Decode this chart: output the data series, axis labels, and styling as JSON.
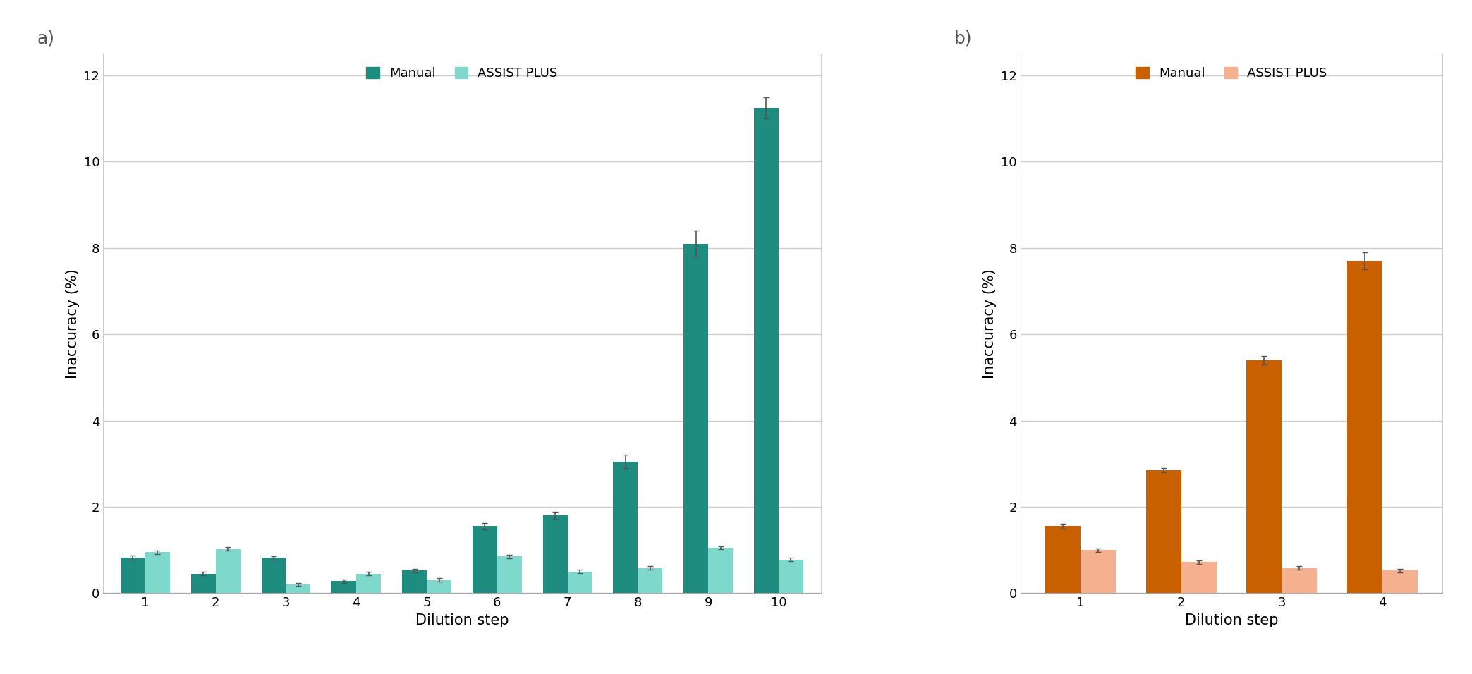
{
  "panel_a": {
    "title": "a)",
    "x_labels": [
      "1",
      "2",
      "3",
      "4",
      "5",
      "6",
      "7",
      "8",
      "9",
      "10"
    ],
    "manual_values": [
      0.82,
      0.45,
      0.82,
      0.28,
      0.52,
      1.55,
      1.8,
      3.05,
      8.1,
      11.25
    ],
    "manual_errors": [
      0.05,
      0.04,
      0.04,
      0.04,
      0.04,
      0.07,
      0.08,
      0.15,
      0.3,
      0.25
    ],
    "assist_values": [
      0.95,
      1.02,
      0.2,
      0.45,
      0.3,
      0.85,
      0.5,
      0.58,
      1.05,
      0.78
    ],
    "assist_errors": [
      0.04,
      0.04,
      0.04,
      0.04,
      0.04,
      0.04,
      0.04,
      0.04,
      0.04,
      0.04
    ],
    "manual_color": "#1e8c7e",
    "assist_color": "#7fd8cc",
    "ylabel": "Inaccuracy (%)",
    "xlabel": "Dilution step",
    "ylim": [
      0,
      12.5
    ],
    "yticks": [
      0,
      2,
      4,
      6,
      8,
      10,
      12
    ],
    "legend_manual": "Manual",
    "legend_assist": "ASSIST PLUS"
  },
  "panel_b": {
    "title": "b)",
    "x_labels": [
      "1",
      "2",
      "3",
      "4"
    ],
    "manual_values": [
      1.55,
      2.85,
      5.4,
      7.7
    ],
    "manual_errors": [
      0.05,
      0.05,
      0.1,
      0.2
    ],
    "assist_values": [
      1.0,
      0.72,
      0.58,
      0.52
    ],
    "assist_errors": [
      0.04,
      0.04,
      0.04,
      0.04
    ],
    "manual_color": "#c86000",
    "assist_color": "#f5b090",
    "ylabel": "Inaccuracy (%)",
    "xlabel": "Dilution step",
    "ylim": [
      0,
      12.5
    ],
    "yticks": [
      0,
      2,
      4,
      6,
      8,
      10,
      12
    ],
    "legend_manual": "Manual",
    "legend_assist": "ASSIST PLUS"
  },
  "figsize": [
    20.87,
    9.56
  ],
  "dpi": 100,
  "background_color": "#ffffff",
  "grid_color": "#cccccc",
  "bar_width": 0.35,
  "label_fontsize": 15,
  "tick_fontsize": 13,
  "legend_fontsize": 13,
  "panel_label_fontsize": 18,
  "spine_color": "#cccccc"
}
